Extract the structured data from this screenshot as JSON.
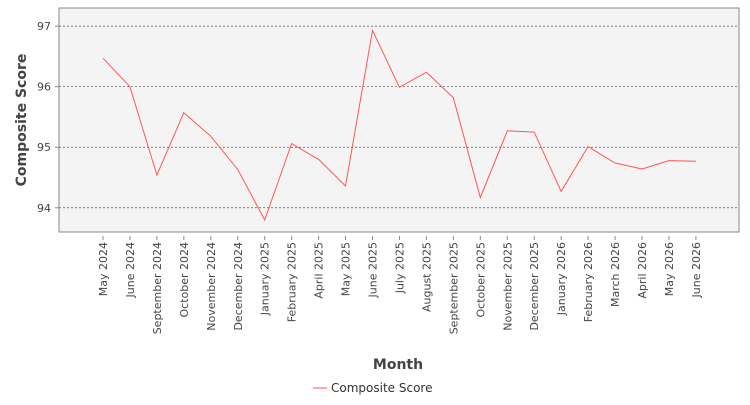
{
  "chart_data": {
    "type": "line",
    "title": "",
    "xlabel": "Month",
    "ylabel": "Composite Score",
    "ylim": [
      93.6,
      97.3
    ],
    "yticks": [
      94,
      95,
      96,
      97
    ],
    "grid": true,
    "legend_position": "bottom",
    "categories": [
      "May 2024",
      "June 2024",
      "September 2024",
      "October 2024",
      "November 2024",
      "December 2024",
      "January 2025",
      "February 2025",
      "April 2025",
      "May 2025",
      "June 2025",
      "July 2025",
      "August 2025",
      "September 2025",
      "October 2025",
      "November 2025",
      "December 2025",
      "January 2026",
      "February 2026",
      "March 2026",
      "April 2026",
      "May 2026",
      "June 2026"
    ],
    "series": [
      {
        "name": "Composite Score",
        "color": "#ff5555",
        "values": [
          96.47,
          96.0,
          94.54,
          95.57,
          95.18,
          94.63,
          93.8,
          95.06,
          94.8,
          94.36,
          96.93,
          95.99,
          96.24,
          95.82,
          94.17,
          95.27,
          95.25,
          94.27,
          95.01,
          94.74,
          94.64,
          94.78,
          94.77
        ]
      }
    ]
  }
}
